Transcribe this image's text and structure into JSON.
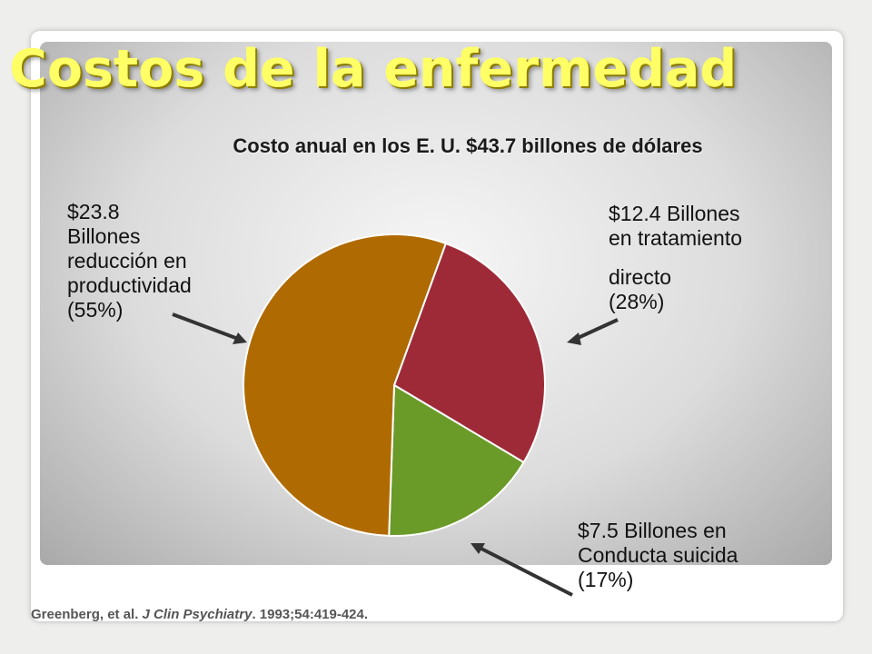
{
  "slide": {
    "title": "Costos de la enfermedad",
    "subtitle": "Costo anual en los E. U. $43.7 billones de dólares"
  },
  "labels": {
    "productividad": [
      "$23.8",
      "Billones",
      "reducción en",
      "productividad",
      "(55%)"
    ],
    "tratamiento": [
      "$12.4 Billones",
      "en tratamiento",
      "directo",
      "(28%)"
    ],
    "suicida": [
      "$7.5 Billones en",
      "Conducta suicida",
      "(17%)"
    ]
  },
  "citation": {
    "authors": "Greenberg, et al.",
    "journal": "J Clin Psychiatry",
    "details": ". 1993;54:419-424."
  },
  "chart_data": {
    "type": "pie",
    "title": "Costo anual en los E. U. $43.7 billones de dólares",
    "slices": [
      {
        "label": "$12.4 Billones en tratamiento directo",
        "value": 28,
        "amount": 12.4,
        "color": "#9e2a38"
      },
      {
        "label": "$7.5 Billones en Conducta suicida",
        "value": 17,
        "amount": 7.5,
        "color": "#6a9a28"
      },
      {
        "label": "$23.8 Billones reducción en productividad",
        "value": 55,
        "amount": 23.8,
        "color": "#b06a02"
      }
    ],
    "unit": "%",
    "start_angle_deg": 20
  }
}
